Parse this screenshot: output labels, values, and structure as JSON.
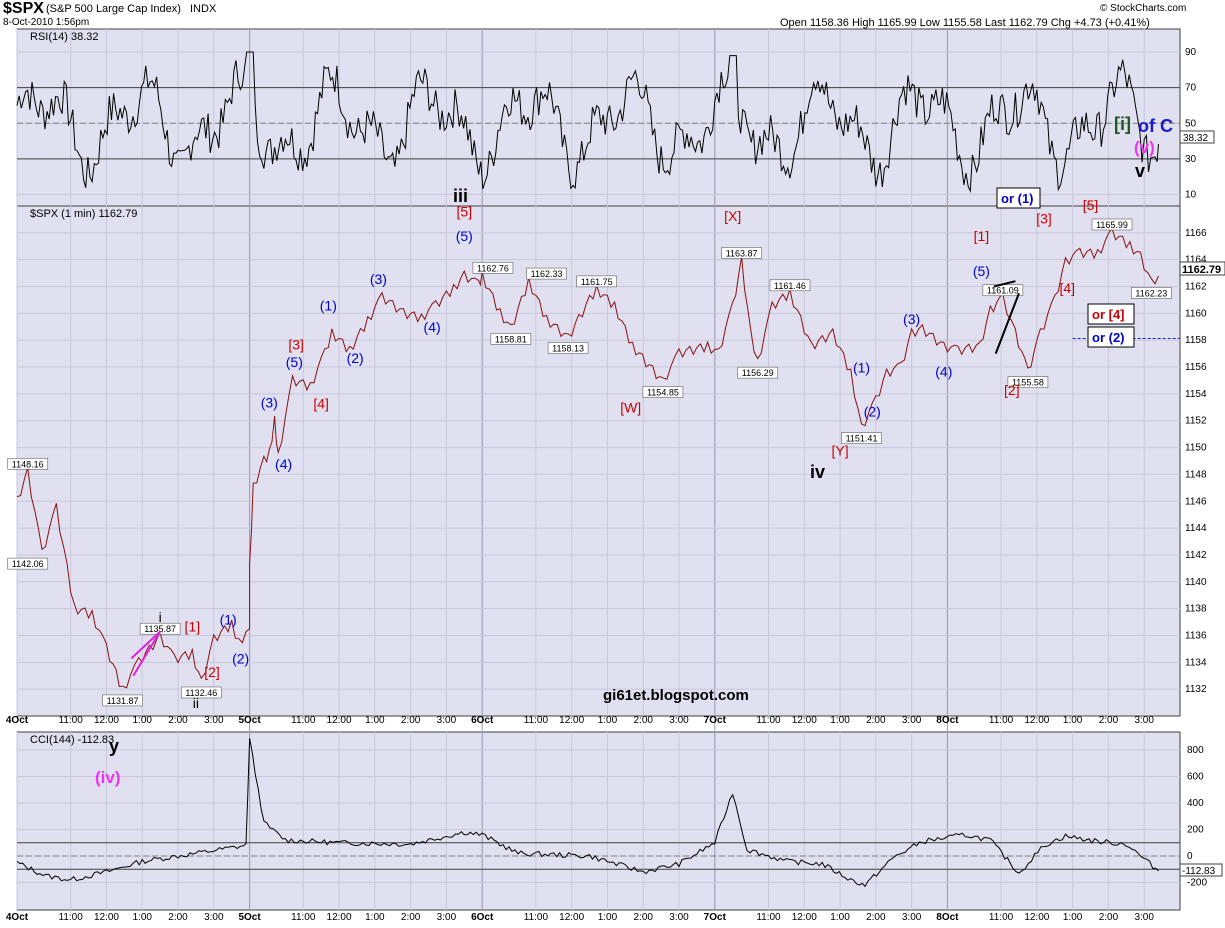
{
  "header": {
    "symbol": "$SPX",
    "name": "(S&P 500 Large Cap Index)",
    "exchange": "INDX",
    "datetime": "8-Oct-2010 1:56pm",
    "quote": "Open 1158.36  High 1165.99  Low 1155.58  Last 1162.79  Chg +4.73 (+0.41%)",
    "copyright": "© StockCharts.com",
    "watermark": "gi61et.blogspot.com"
  },
  "rsi": {
    "label": "RSI(14) 38.32",
    "ticks": [
      10,
      30,
      50,
      70,
      90
    ],
    "last": "38.32",
    "bands": [
      30,
      70
    ],
    "center": 50
  },
  "price": {
    "label": "$SPX (1 min) 1162.79",
    "ylim": [
      1130,
      1168
    ],
    "ticks": [
      1132,
      1134,
      1136,
      1138,
      1140,
      1142,
      1144,
      1146,
      1148,
      1150,
      1152,
      1154,
      1156,
      1158,
      1160,
      1162,
      1164,
      1166
    ],
    "last": "1162.79",
    "callouts": [
      {
        "text": "1148.16",
        "x": 0.3,
        "y": 1148.16,
        "pos": "above"
      },
      {
        "text": "1142.06",
        "x": 0.3,
        "y": 1142.06,
        "pos": "below"
      },
      {
        "text": "1131.87",
        "x": 2.95,
        "y": 1131.87,
        "pos": "below"
      },
      {
        "text": "1135.87",
        "x": 4.0,
        "y": 1135.87,
        "pos": "above"
      },
      {
        "text": "1132.46",
        "x": 5.15,
        "y": 1132.46,
        "pos": "below"
      },
      {
        "text": "1162.76",
        "x": 13.3,
        "y": 1162.76,
        "pos": "above"
      },
      {
        "text": "1162.33",
        "x": 14.8,
        "y": 1162.33,
        "pos": "above"
      },
      {
        "text": "1158.81",
        "x": 13.8,
        "y": 1158.81,
        "pos": "below"
      },
      {
        "text": "1158.13",
        "x": 15.4,
        "y": 1158.13,
        "pos": "below"
      },
      {
        "text": "1161.75",
        "x": 16.2,
        "y": 1161.75,
        "pos": "above"
      },
      {
        "text": "1154.85",
        "x": 18.05,
        "y": 1154.85,
        "pos": "below"
      },
      {
        "text": "1163.87",
        "x": 20.25,
        "y": 1163.87,
        "pos": "above"
      },
      {
        "text": "1161.46",
        "x": 21.6,
        "y": 1161.46,
        "pos": "above"
      },
      {
        "text": "1156.29",
        "x": 20.7,
        "y": 1156.29,
        "pos": "below"
      },
      {
        "text": "1151.41",
        "x": 23.6,
        "y": 1151.41,
        "pos": "below"
      },
      {
        "text": "1161.09",
        "x": 27.55,
        "y": 1161.09,
        "pos": "above"
      },
      {
        "text": "1155.58",
        "x": 28.25,
        "y": 1155.58,
        "pos": "below"
      },
      {
        "text": "1165.99",
        "x": 30.6,
        "y": 1165.99,
        "pos": "above"
      },
      {
        "text": "1162.23",
        "x": 31.7,
        "y": 1162.23,
        "pos": "below"
      }
    ]
  },
  "cci": {
    "label": "CCI(144) -112.83",
    "ticks": [
      -200,
      0,
      200,
      400,
      600,
      800
    ],
    "last": "-112.83"
  },
  "time_axis": {
    "labels": [
      {
        "t": "4Oct",
        "x": 0,
        "bold": true
      },
      {
        "t": "11:00",
        "x": 1.5
      },
      {
        "t": "12:00",
        "x": 2.5
      },
      {
        "t": "1:00",
        "x": 3.5
      },
      {
        "t": "2:00",
        "x": 4.5
      },
      {
        "t": "3:00",
        "x": 5.5
      },
      {
        "t": "5Oct",
        "x": 6.5,
        "bold": true
      },
      {
        "t": "11:00",
        "x": 8
      },
      {
        "t": "12:00",
        "x": 9
      },
      {
        "t": "1:00",
        "x": 10
      },
      {
        "t": "2:00",
        "x": 11
      },
      {
        "t": "3:00",
        "x": 12
      },
      {
        "t": "6Oct",
        "x": 13,
        "bold": true
      },
      {
        "t": "11:00",
        "x": 14.5
      },
      {
        "t": "12:00",
        "x": 15.5
      },
      {
        "t": "1:00",
        "x": 16.5
      },
      {
        "t": "2:00",
        "x": 17.5
      },
      {
        "t": "3:00",
        "x": 18.5
      },
      {
        "t": "7Oct",
        "x": 19.5,
        "bold": true
      },
      {
        "t": "11:00",
        "x": 21
      },
      {
        "t": "12:00",
        "x": 22
      },
      {
        "t": "1:00",
        "x": 23
      },
      {
        "t": "2:00",
        "x": 24
      },
      {
        "t": "3:00",
        "x": 25
      },
      {
        "t": "8Oct",
        "x": 26,
        "bold": true
      },
      {
        "t": "11:00",
        "x": 27.5
      },
      {
        "t": "12:00",
        "x": 28.5
      },
      {
        "t": "1:00",
        "x": 29.5
      },
      {
        "t": "2:00",
        "x": 30.5
      },
      {
        "t": "3:00",
        "x": 31.5
      }
    ],
    "dividers": [
      6.5,
      13,
      19.5,
      26
    ]
  },
  "wave_labels": [
    {
      "text": "i",
      "color": "#000000",
      "x": 4.0,
      "y": 1137.0
    },
    {
      "text": "ii",
      "color": "#000000",
      "x": 5.0,
      "y": 1130.6
    },
    {
      "text": "[1]",
      "color": "#cc0000",
      "x": 4.9,
      "y": 1136.3
    },
    {
      "text": "[2]",
      "color": "#cc0000",
      "x": 5.45,
      "y": 1132.9
    },
    {
      "text": "(1)",
      "color": "#0000cc",
      "x": 5.9,
      "y": 1136.8
    },
    {
      "text": "(2)",
      "color": "#0000cc",
      "x": 6.25,
      "y": 1133.9
    },
    {
      "text": "(3)",
      "color": "#0000cc",
      "x": 7.05,
      "y": 1153.0
    },
    {
      "text": "(4)",
      "color": "#0000cc",
      "x": 7.45,
      "y": 1148.4
    },
    {
      "text": "(5)",
      "color": "#0000cc",
      "x": 7.75,
      "y": 1156.0
    },
    {
      "text": "[3]",
      "color": "#cc0000",
      "x": 7.8,
      "y": 1157.3
    },
    {
      "text": "[4]",
      "color": "#cc0000",
      "x": 8.5,
      "y": 1152.9
    },
    {
      "text": "(1)",
      "color": "#0000cc",
      "x": 8.7,
      "y": 1160.2
    },
    {
      "text": "(2)",
      "color": "#0000cc",
      "x": 9.45,
      "y": 1156.3
    },
    {
      "text": "(3)",
      "color": "#0000cc",
      "x": 10.1,
      "y": 1162.2
    },
    {
      "text": "(4)",
      "color": "#0000cc",
      "x": 11.6,
      "y": 1158.6
    },
    {
      "text": "(5)",
      "color": "#0000cc",
      "x": 12.5,
      "y": 1165.4
    },
    {
      "text": "[5]",
      "color": "#cc0000",
      "x": 12.5,
      "y": 1167.2
    },
    {
      "text": "[W]",
      "color": "#cc0000",
      "x": 17.15,
      "y": 1152.6
    },
    {
      "text": "[X]",
      "color": "#cc0000",
      "x": 20.0,
      "y": 1166.9
    },
    {
      "text": "(1)",
      "color": "#0000cc",
      "x": 23.6,
      "y": 1155.6
    },
    {
      "text": "(2)",
      "color": "#0000cc",
      "x": 23.9,
      "y": 1152.3
    },
    {
      "text": "(3)",
      "color": "#0000cc",
      "x": 25.0,
      "y": 1159.2
    },
    {
      "text": "(4)",
      "color": "#0000cc",
      "x": 25.9,
      "y": 1155.3
    },
    {
      "text": "(5)",
      "color": "#0000cc",
      "x": 26.95,
      "y": 1162.8
    },
    {
      "text": "[1]",
      "color": "#cc0000",
      "x": 26.95,
      "y": 1165.4
    },
    {
      "text": "[2]",
      "color": "#cc0000",
      "x": 27.8,
      "y": 1153.9
    },
    {
      "text": "[3]",
      "color": "#cc0000",
      "x": 28.7,
      "y": 1166.7
    },
    {
      "text": "[4]",
      "color": "#cc0000",
      "x": 29.35,
      "y": 1161.5
    },
    {
      "text": "[5]",
      "color": "#cc0000",
      "x": 30.0,
      "y": 1167.7
    },
    {
      "text": "[Y]",
      "color": "#cc0000",
      "x": 23.0,
      "y": 1149.4
    }
  ],
  "big_labels": {
    "iii": "iii",
    "iv": "iv",
    "v": "v",
    "y": "y",
    "iv_pink": "(iv)",
    "v_pink": "(v)",
    "i_bracket": "[i]",
    "of_c": "of C",
    "or_1": "or (1)",
    "or_4": "or [4]",
    "or_2": "or (2)"
  }
}
